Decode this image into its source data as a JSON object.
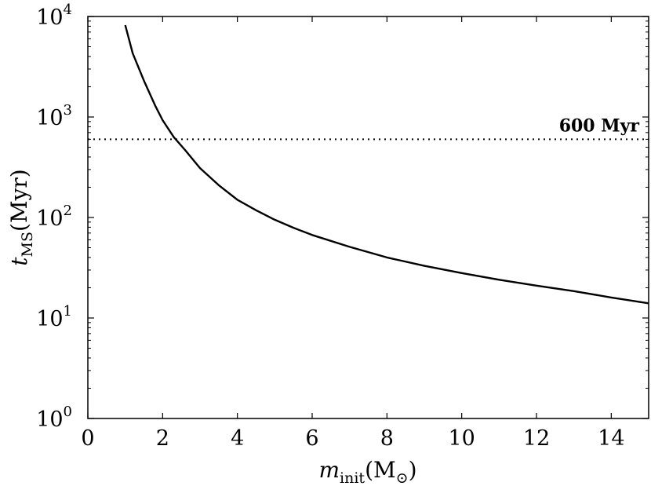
{
  "chart_data": {
    "type": "line",
    "x_axis": {
      "label_main": "m",
      "label_sub": "init",
      "label_rest": "(M",
      "label_sub2": "⊙",
      "label_close": ")",
      "range": [
        0,
        15
      ],
      "ticks": [
        0,
        2,
        4,
        6,
        8,
        10,
        12,
        14
      ],
      "tick_labels": [
        "0",
        "2",
        "4",
        "6",
        "8",
        "10",
        "12",
        "14"
      ]
    },
    "y_axis": {
      "label_main": "t",
      "label_sub": "MS",
      "label_rest": "(Myr)",
      "scale": "log",
      "range": [
        1,
        10000
      ],
      "tick_base": "10",
      "tick_exponents": [
        "0",
        "1",
        "2",
        "3",
        "4"
      ],
      "tick_values": [
        1,
        10,
        100,
        1000,
        10000
      ]
    },
    "series": [
      {
        "style": "solid",
        "color": "#000000",
        "x": [
          1.0,
          1.2,
          1.5,
          1.8,
          2.0,
          2.3,
          2.6,
          3.0,
          3.5,
          4.0,
          4.5,
          5.0,
          5.5,
          6.0,
          7.0,
          8.0,
          9.0,
          10.0,
          11.0,
          12.0,
          13.0,
          14.0,
          15.0
        ],
        "y": [
          8200,
          4300,
          2300,
          1300,
          930,
          630,
          470,
          310,
          210,
          150,
          118,
          95,
          79,
          67,
          51,
          40,
          33,
          28,
          24,
          21,
          18.5,
          16,
          14
        ]
      }
    ],
    "annotations": [
      {
        "type": "hline",
        "y": 600,
        "style": "dotted",
        "label": "600 Myr"
      }
    ],
    "grid": false,
    "legend": "none"
  }
}
